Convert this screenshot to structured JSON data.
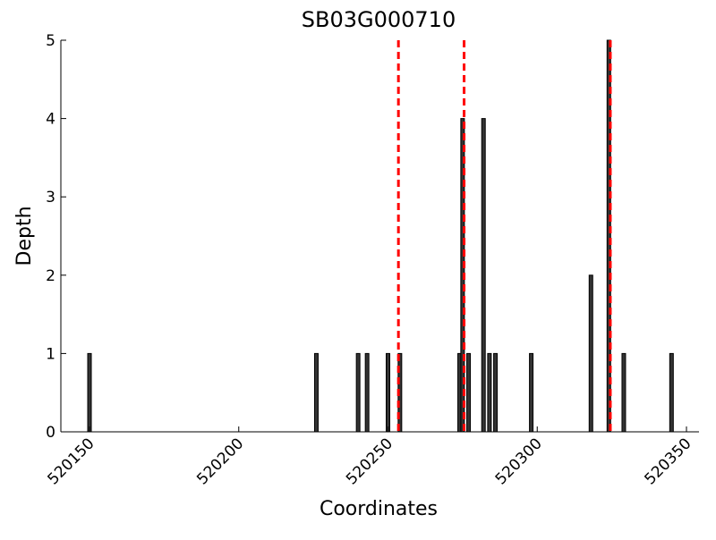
{
  "chart_data": {
    "type": "bar",
    "title": "SB03G000710",
    "xlabel": "Coordinates",
    "ylabel": "Depth",
    "x": [
      520150,
      520226,
      520240,
      520243,
      520250,
      520254,
      520274,
      520275,
      520277,
      520282,
      520284,
      520286,
      520298,
      520318,
      520324,
      520329,
      520345
    ],
    "values": [
      1,
      1,
      1,
      1,
      1,
      1,
      1,
      4,
      1,
      4,
      1,
      1,
      1,
      2,
      5,
      1,
      1
    ],
    "color": "#333333",
    "vlines": [
      520253.5,
      520275.5,
      520324.5
    ],
    "vline_color": "#ff0000",
    "xlim": [
      520140.4,
      520354.2
    ],
    "xticks": [
      520150,
      520200,
      520250,
      520300,
      520350
    ],
    "ylim": [
      0,
      5
    ],
    "yticks": [
      0,
      1,
      2,
      3,
      4,
      5
    ]
  }
}
